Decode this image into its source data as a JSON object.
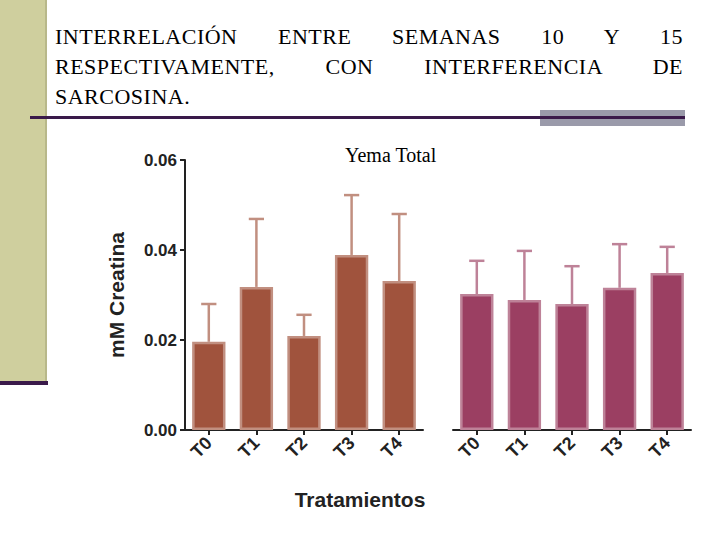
{
  "header": {
    "title": "INTERRELACIÓN ENTRE SEMANAS 10 Y 15 RESPECTIVAMENTE, CON INTERFERENCIA DE SARCOSINA."
  },
  "chart_data": {
    "type": "bar",
    "title": "Yema Total",
    "xlabel": "Tratamientos",
    "ylabel": "mM Creatina",
    "categories": [
      "T0",
      "T1",
      "T2",
      "T3",
      "T4"
    ],
    "series": [
      {
        "color": "#a0533d",
        "values": [
          0.0196,
          0.0318,
          0.0209,
          0.0389,
          0.0331
        ],
        "errors": [
          0.0084,
          0.0151,
          0.0047,
          0.0133,
          0.0149
        ]
      },
      {
        "color": "#9b3f62",
        "values": [
          0.0302,
          0.0289,
          0.028,
          0.0316,
          0.0349
        ],
        "errors": [
          0.0074,
          0.0109,
          0.0084,
          0.0097,
          0.0058
        ]
      }
    ],
    "ylim": [
      0,
      0.06
    ],
    "yticks": [
      {
        "value": 0,
        "label": "0.00"
      },
      {
        "value": 0.02,
        "label": "0.02"
      },
      {
        "value": 0.04,
        "label": "0.04"
      },
      {
        "value": 0.06,
        "label": "0.06"
      }
    ],
    "grid": false
  }
}
